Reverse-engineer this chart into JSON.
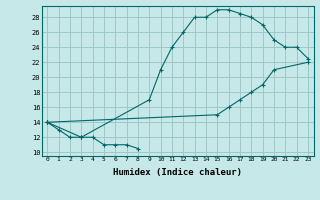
{
  "xlabel": "Humidex (Indice chaleur)",
  "background_color": "#c6e8e8",
  "grid_color": "#a0c8c8",
  "line_color": "#006868",
  "xlim": [
    -0.5,
    23.5
  ],
  "ylim": [
    9.5,
    29.5
  ],
  "xticks": [
    0,
    1,
    2,
    3,
    4,
    5,
    6,
    7,
    8,
    9,
    10,
    11,
    12,
    13,
    14,
    15,
    16,
    17,
    18,
    19,
    20,
    21,
    22,
    23
  ],
  "yticks": [
    10,
    12,
    14,
    16,
    18,
    20,
    22,
    24,
    26,
    28
  ],
  "line1_x": [
    0,
    1,
    2,
    3,
    4,
    5,
    6,
    7,
    8
  ],
  "line1_y": [
    14,
    13,
    12,
    12,
    12,
    11,
    11,
    11,
    10.5
  ],
  "line2_x": [
    0,
    3,
    9,
    10,
    11,
    12,
    13,
    14,
    15,
    16,
    17,
    18,
    19,
    20,
    21,
    22,
    23
  ],
  "line2_y": [
    14,
    12,
    17,
    21,
    24,
    26,
    28,
    28,
    29,
    29,
    28.5,
    28,
    27,
    25,
    24,
    24,
    22.5
  ],
  "line3_x": [
    0,
    15,
    16,
    17,
    18,
    19,
    20,
    23
  ],
  "line3_y": [
    14,
    15,
    16,
    17,
    18,
    19,
    21,
    22
  ]
}
